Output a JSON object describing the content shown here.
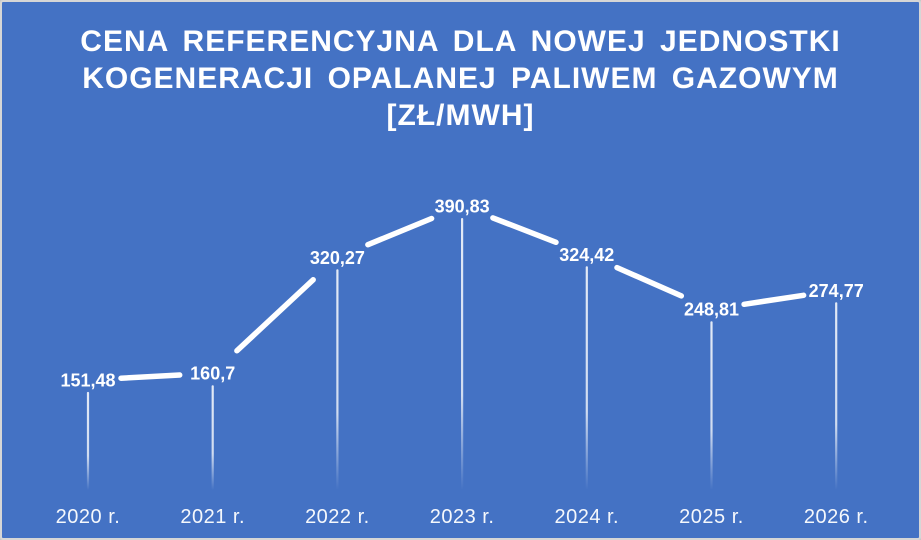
{
  "chart_data": {
    "type": "line",
    "title": "CENA REFERENCYJNA DLA NOWEJ JEDNOSTKI KOGENERACJI OPALANEJ PALIWEM GAZOWYM [ZŁ/MWH]",
    "title_lines": [
      "CENA REFERENCYJNA DLA NOWEJ JEDNOSTKI",
      "KOGENERACJI OPALANEJ PALIWEM GAZOWYM",
      "[ZŁ/MWH]"
    ],
    "categories": [
      "2020 r.",
      "2021 r.",
      "2022 r.",
      "2023 r.",
      "2024 r.",
      "2025 r.",
      "2026 r."
    ],
    "values": [
      151.48,
      160.7,
      320.27,
      390.83,
      324.42,
      248.81,
      274.77
    ],
    "value_labels": [
      "151,48",
      "160,7",
      "320,27",
      "390,83",
      "324,42",
      "248,81",
      "274,77"
    ],
    "xlabel": "",
    "ylabel": "",
    "ylim": [
      0,
      450
    ],
    "grid": false,
    "legend": false,
    "drop_lines": true,
    "line_color": "#FFFFFF",
    "label_color": "#FFFFFF",
    "background_color": "#4472C4",
    "border_color": "#D6D6D6"
  }
}
